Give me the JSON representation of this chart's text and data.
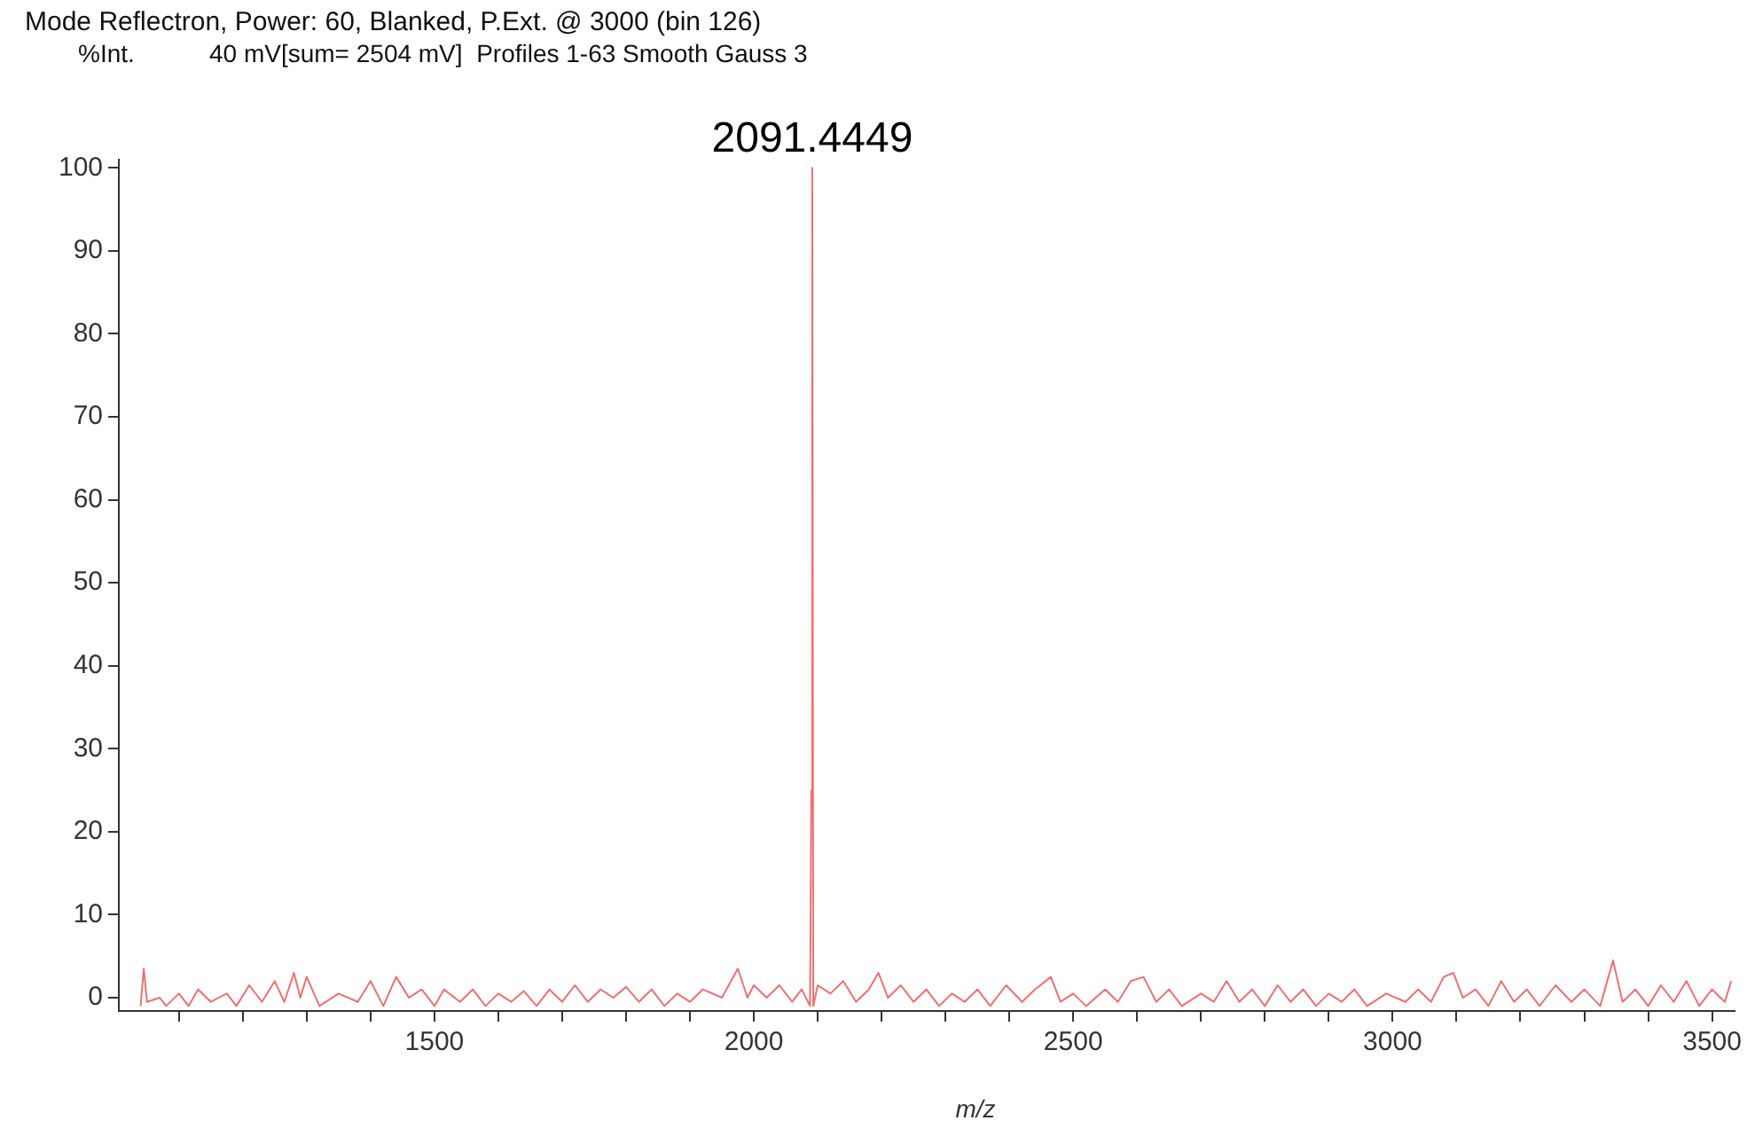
{
  "chart_data": {
    "type": "line",
    "title": "Mode Reflectron, Power: 60, Blanked, P.Ext. @ 3000 (bin 126)",
    "subtitle": "40 mV[sum= 2504 mV]  Profiles 1-63 Smooth Gauss 3",
    "ylabel": "%Int.",
    "xlabel": "m/z",
    "x": [
      1040,
      1045,
      1050,
      1070,
      1080,
      1100,
      1115,
      1130,
      1150,
      1175,
      1190,
      1210,
      1230,
      1250,
      1265,
      1280,
      1290,
      1300,
      1320,
      1350,
      1380,
      1400,
      1420,
      1440,
      1460,
      1480,
      1500,
      1515,
      1540,
      1560,
      1580,
      1600,
      1620,
      1640,
      1660,
      1680,
      1700,
      1720,
      1740,
      1760,
      1780,
      1800,
      1820,
      1840,
      1860,
      1880,
      1900,
      1920,
      1950,
      1975,
      1990,
      2000,
      2020,
      2040,
      2060,
      2075,
      2088,
      2090,
      2091.4449,
      2093,
      2100,
      2120,
      2140,
      2160,
      2180,
      2195,
      2210,
      2230,
      2250,
      2270,
      2290,
      2310,
      2330,
      2350,
      2370,
      2395,
      2420,
      2440,
      2465,
      2480,
      2500,
      2520,
      2550,
      2570,
      2590,
      2610,
      2630,
      2650,
      2670,
      2700,
      2720,
      2740,
      2760,
      2780,
      2800,
      2820,
      2840,
      2860,
      2880,
      2900,
      2920,
      2940,
      2960,
      2990,
      3020,
      3040,
      3060,
      3080,
      3095,
      3110,
      3130,
      3150,
      3170,
      3190,
      3210,
      3230,
      3255,
      3280,
      3300,
      3325,
      3345,
      3360,
      3380,
      3400,
      3420,
      3440,
      3460,
      3480,
      3500,
      3520,
      3530
    ],
    "series": [
      {
        "color": "#f07070",
        "values": [
          -1,
          3.5,
          -0.5,
          0,
          -1,
          0.5,
          -1,
          1,
          -0.5,
          0.5,
          -1,
          1.5,
          -0.5,
          2,
          -0.5,
          3,
          0,
          2.5,
          -1,
          0.5,
          -0.5,
          2,
          -1,
          2.5,
          0,
          1,
          -1,
          1,
          -0.5,
          1,
          -1,
          0.5,
          -0.5,
          0.8,
          -1,
          1,
          -0.5,
          1.5,
          -0.5,
          1,
          0,
          1.3,
          -0.5,
          1,
          -1,
          0.5,
          -0.5,
          1,
          0,
          3.5,
          0,
          1.5,
          0,
          1.5,
          -0.5,
          1,
          -1,
          25,
          100,
          -1,
          1.5,
          0.5,
          2,
          -0.5,
          1,
          3,
          0,
          1.5,
          -0.5,
          1,
          -1,
          0.5,
          -0.5,
          1,
          -1,
          1.5,
          -0.5,
          1,
          2.5,
          -0.5,
          0.5,
          -1,
          1,
          -0.5,
          2,
          2.5,
          -0.5,
          1,
          -1,
          0.5,
          -0.5,
          2,
          -0.5,
          1,
          -1,
          1.5,
          -0.5,
          1,
          -1,
          0.5,
          -0.5,
          1,
          -1,
          0.5,
          -0.5,
          1,
          -0.5,
          2.5,
          3,
          0,
          1,
          -1,
          2,
          -0.5,
          1,
          -1,
          1.5,
          -0.5,
          1,
          -1,
          4.5,
          -0.5,
          1,
          -1,
          1.5,
          -0.5,
          2,
          -1,
          1,
          -0.5,
          2
        ]
      }
    ],
    "xlim": [
      1006,
      3535
    ],
    "xticks": [
      {
        "value": 1100,
        "label": null
      },
      {
        "value": 1200,
        "label": null
      },
      {
        "value": 1300,
        "label": null
      },
      {
        "value": 1400,
        "label": null
      },
      1500,
      {
        "value": 1600,
        "label": null
      },
      {
        "value": 1700,
        "label": null
      },
      {
        "value": 1800,
        "label": null
      },
      {
        "value": 1900,
        "label": null
      },
      2000,
      {
        "value": 2100,
        "label": null
      },
      {
        "value": 2200,
        "label": null
      },
      {
        "value": 2300,
        "label": null
      },
      {
        "value": 2400,
        "label": null
      },
      2500,
      {
        "value": 2600,
        "label": null
      },
      {
        "value": 2700,
        "label": null
      },
      {
        "value": 2800,
        "label": null
      },
      {
        "value": 2900,
        "label": null
      },
      3000,
      {
        "value": 3100,
        "label": null
      },
      {
        "value": 3200,
        "label": null
      },
      {
        "value": 3300,
        "label": null
      },
      {
        "value": 3400,
        "label": null
      },
      3500
    ],
    "ylim": [
      -1.6,
      101
    ],
    "yticks": [
      0,
      10,
      20,
      30,
      40,
      50,
      60,
      70,
      80,
      90,
      100
    ],
    "annotations": [
      {
        "text": "2091.4449",
        "x": 2091.4449,
        "y": 100
      }
    ],
    "grid": false,
    "legend": false,
    "marker": "none",
    "line_style": "solid"
  }
}
